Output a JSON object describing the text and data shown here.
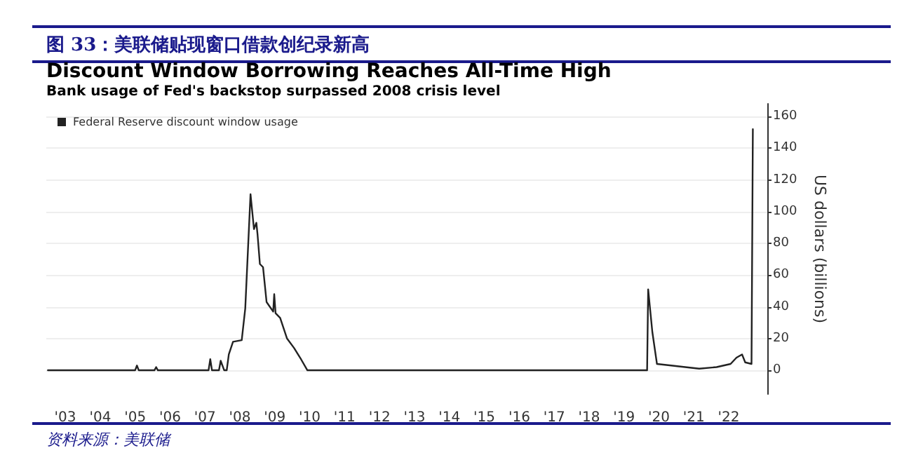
{
  "chart_data": {
    "type": "line",
    "title": "图 33：美联储贴现窗口借款创纪录新高",
    "subtitle": "Discount Window Borrowing Reaches All-Time High",
    "annotations": [
      "Bank usage of Fed's backstop surpassed 2008 crisis level",
      "资料来源：美联储"
    ],
    "ylabel": "US dollars (billions)",
    "x": [
      "2003-01-01",
      "2005-07-01",
      "2005-07-20",
      "2005-08-08",
      "2006-01-19",
      "2006-02-06",
      "2006-02-24",
      "2007-08-08",
      "2007-08-26",
      "2007-09-13",
      "2007-11-25",
      "2007-12-13",
      "2008-01-19",
      "2008-02-14",
      "2008-03-07",
      "2008-04-20",
      "2008-07-20",
      "2008-08-26",
      "2008-10-20",
      "2008-11-25",
      "2008-12-20",
      "2009-01-01",
      "2009-01-26",
      "2009-02-28",
      "2009-04-06",
      "2009-06-14",
      "2009-06-25",
      "2009-07-09",
      "2009-08-26",
      "2009-11-06",
      "2010-01-19",
      "2010-04-01",
      "2010-06-07",
      "2020-02-28",
      "2020-03-10",
      "2020-04-23",
      "2020-06-10",
      "2020-11-06",
      "2021-04-01",
      "2021-08-26",
      "2022-02-24",
      "2022-07-20",
      "2022-09-20",
      "2022-11-17",
      "2022-12-20",
      "2023-02-24",
      "2023-03-10"
    ],
    "series": [
      {
        "name": "Federal Reserve discount window usage",
        "color": "#222222",
        "values": [
          0,
          0,
          3,
          0,
          0,
          2,
          0,
          0,
          7,
          0,
          0,
          6,
          0,
          0,
          10,
          18,
          19,
          39,
          111,
          89,
          93,
          86,
          67,
          65,
          43,
          37,
          48,
          36,
          33,
          20,
          14,
          7,
          0,
          0,
          51,
          24,
          4,
          3,
          2,
          1,
          2,
          4,
          8,
          10,
          5,
          4,
          152
        ]
      }
    ],
    "xlim": [
      "2002-12-15",
      "2023-08-08"
    ],
    "xticks": [
      {
        "value": "2003-07-01",
        "label": "'03"
      },
      {
        "value": "2004-07-01",
        "label": "'04"
      },
      {
        "value": "2005-07-01",
        "label": "'05"
      },
      {
        "value": "2006-07-01",
        "label": "'06"
      },
      {
        "value": "2007-07-01",
        "label": "'07"
      },
      {
        "value": "2008-07-01",
        "label": "'08"
      },
      {
        "value": "2009-07-01",
        "label": "'09"
      },
      {
        "value": "2010-07-01",
        "label": "'10"
      },
      {
        "value": "2011-07-01",
        "label": "'11"
      },
      {
        "value": "2012-07-01",
        "label": "'12"
      },
      {
        "value": "2013-07-01",
        "label": "'13"
      },
      {
        "value": "2014-07-01",
        "label": "'14"
      },
      {
        "value": "2015-07-01",
        "label": "'15"
      },
      {
        "value": "2016-07-01",
        "label": "'16"
      },
      {
        "value": "2017-07-01",
        "label": "'17"
      },
      {
        "value": "2018-07-01",
        "label": "'18"
      },
      {
        "value": "2019-07-01",
        "label": "'19"
      },
      {
        "value": "2020-07-01",
        "label": "'20"
      },
      {
        "value": "2021-07-01",
        "label": "'21"
      },
      {
        "value": "2022-07-01",
        "label": "'22"
      }
    ],
    "ylim": [
      -15,
      168
    ],
    "yticks": [
      0,
      20,
      40,
      60,
      80,
      100,
      120,
      140,
      160
    ],
    "grid": "y",
    "legend": "top left",
    "marker": "none",
    "line_style": "solid"
  }
}
